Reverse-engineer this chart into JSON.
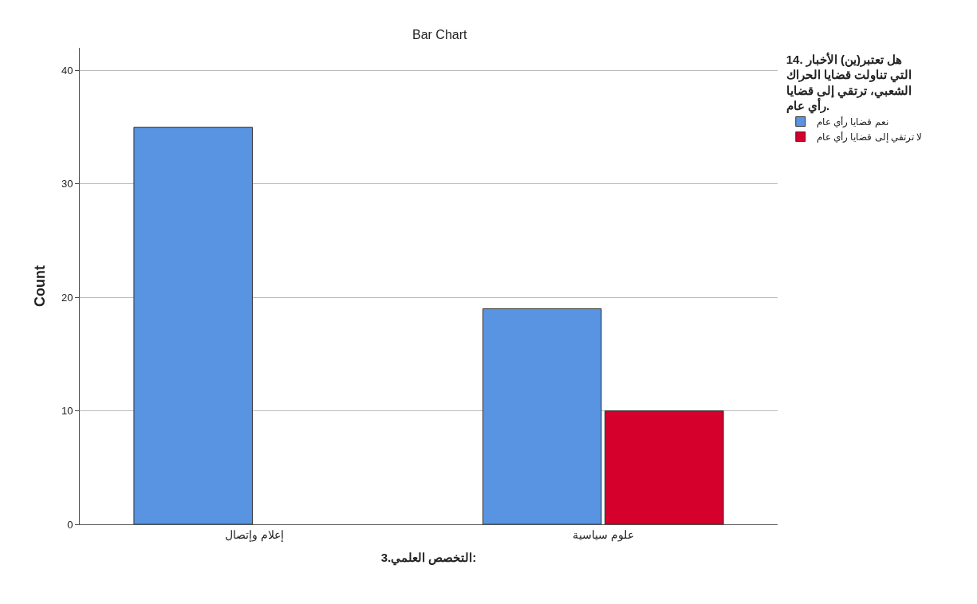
{
  "chart_data": {
    "type": "bar",
    "title": "Bar Chart",
    "xlabel": "3.التخصص العلمي:",
    "ylabel": "Count",
    "legend_title": "14. هل تعتبر(ين) الأخبار التي تناولت قضايا الحراك الشعبي، ترتقي إلى قضايا رأي عام.",
    "categories": [
      "إعلام وإتصال",
      "علوم سياسية"
    ],
    "series": [
      {
        "name": "نعم قضايا رأي عام",
        "color": "#5894e1",
        "values": [
          35,
          19
        ]
      },
      {
        "name": "لا ترتقي إلى قضايا رأي عام",
        "color": "#d5002b",
        "values": [
          null,
          10
        ]
      }
    ],
    "ylim": [
      0,
      42
    ],
    "yticks": [
      0,
      10,
      20,
      30,
      40
    ],
    "grid": "y",
    "legend": "top right"
  }
}
